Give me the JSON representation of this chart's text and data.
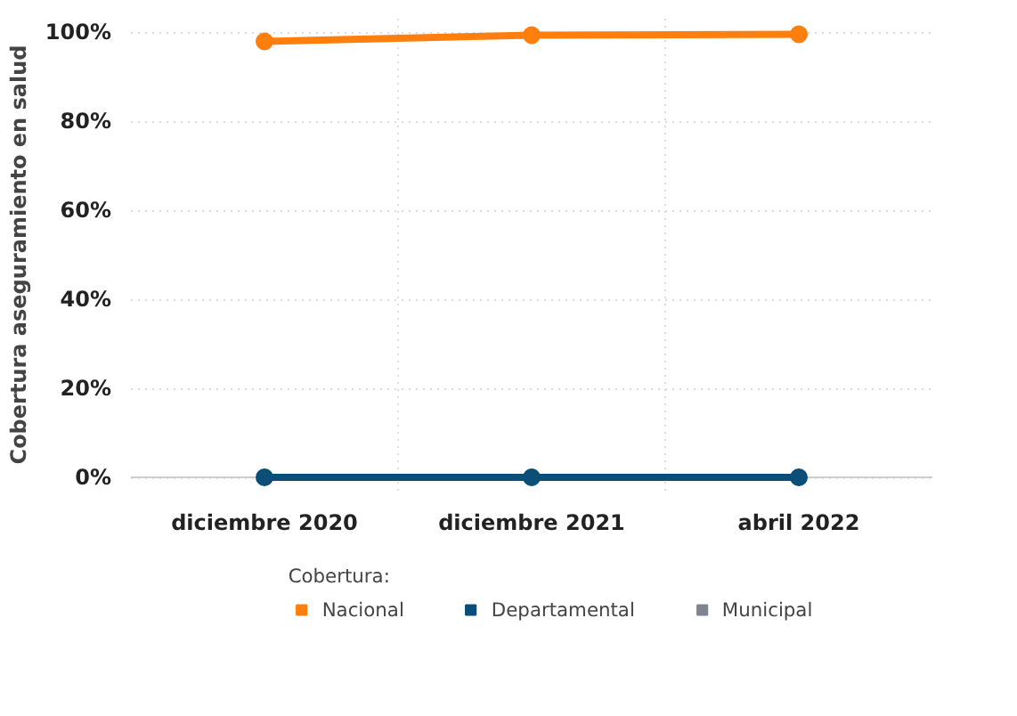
{
  "chart_data": {
    "type": "line",
    "ylabel": "Cobertura aseguramiento en salud",
    "legend_title": "Cobertura:",
    "categories": [
      "diciembre 2020",
      "diciembre 2021",
      "abril 2022"
    ],
    "series": [
      {
        "name": "Nacional",
        "color": "#ff7f0e",
        "values": [
          97.9,
          99.3,
          99.5
        ]
      },
      {
        "name": "Departamental",
        "color": "#0b4f78",
        "values": [
          0,
          0,
          0
        ]
      },
      {
        "name": "Municipal",
        "color": "#7f8590",
        "values": [
          null,
          null,
          null
        ]
      }
    ],
    "ylim": [
      0,
      100
    ],
    "yticks": [
      {
        "value": 0,
        "label": "0%"
      },
      {
        "value": 20,
        "label": "20%"
      },
      {
        "value": 40,
        "label": "40%"
      },
      {
        "value": 60,
        "label": "60%"
      },
      {
        "value": 80,
        "label": "80%"
      },
      {
        "value": 100,
        "label": "100%"
      }
    ],
    "grid": true,
    "legend": "bottom",
    "marker": "circle",
    "line_style": "solid"
  }
}
